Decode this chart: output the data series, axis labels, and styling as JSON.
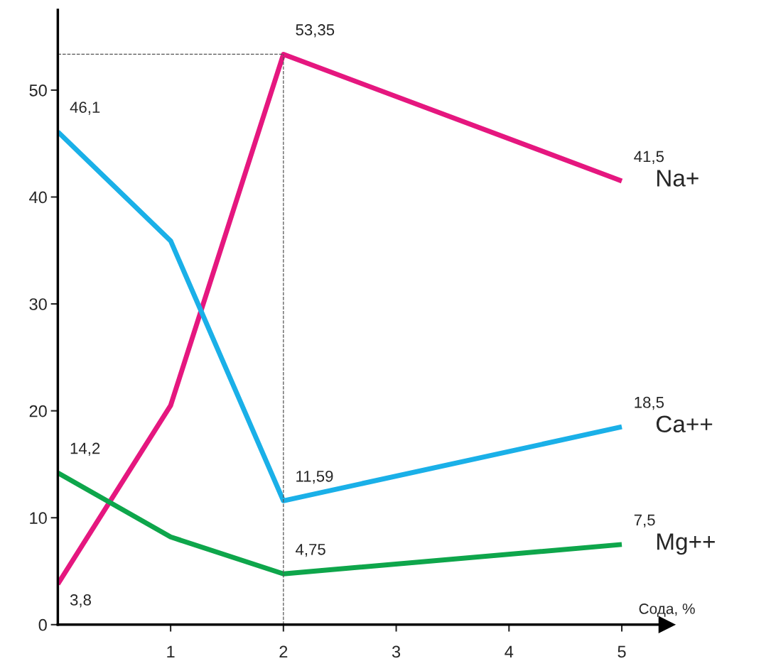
{
  "chart_data": {
    "type": "line",
    "xlabel": "Сода, %",
    "x": [
      0,
      1,
      2,
      5
    ],
    "series": [
      {
        "name": "Na+",
        "color": "#e5177f",
        "values": [
          3.8,
          20.5,
          53.35,
          41.5
        ],
        "value_labels": [
          "3,8",
          null,
          "53,35",
          "41,5"
        ]
      },
      {
        "name": "Ca++",
        "color": "#1ab0e8",
        "values": [
          46.1,
          35.9,
          11.59,
          18.5
        ],
        "value_labels": [
          "46,1",
          null,
          "11,59",
          "18,5"
        ]
      },
      {
        "name": "Mg++",
        "color": "#0ea64b",
        "values": [
          14.2,
          8.2,
          4.75,
          7.5
        ],
        "value_labels": [
          "14,2",
          null,
          "4,75",
          "7,5"
        ]
      }
    ],
    "xlim": [
      0,
      5.4
    ],
    "ylim": [
      0,
      57.5
    ],
    "xticks": [
      1,
      2,
      3,
      4,
      5
    ],
    "yticks": [
      0,
      10,
      20,
      30,
      40,
      50
    ],
    "ref_lines": [
      {
        "axis": "y",
        "value": 53.35,
        "line_style": "dashed",
        "color": "#555555"
      },
      {
        "axis": "x",
        "value": 2,
        "line_style": "dashed",
        "color": "#555555"
      }
    ],
    "grid": false,
    "legend": false,
    "marker": "none",
    "line_style": "solid"
  }
}
